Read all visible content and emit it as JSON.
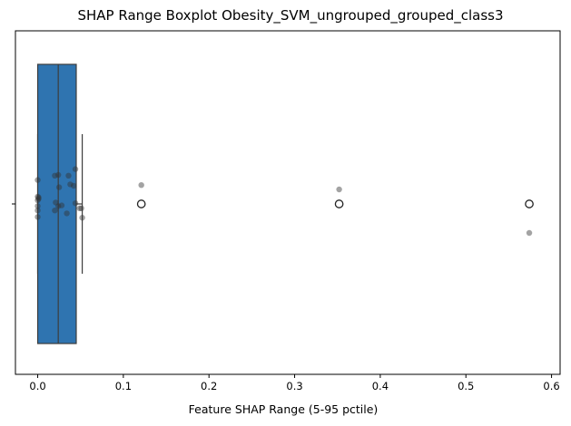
{
  "chart_data": {
    "type": "boxplot",
    "title": "SHAP Range Boxplot Obesity_SVM_ungrouped_grouped_class3",
    "xlabel": "Feature SHAP Range (5-95 pctile)",
    "ylabel": "",
    "xlim": [
      -0.026,
      0.61
    ],
    "xticks": [
      0.0,
      0.1,
      0.2,
      0.3,
      0.4,
      0.5,
      0.6
    ],
    "xtick_labels": [
      "0.0",
      "0.1",
      "0.2",
      "0.3",
      "0.4",
      "0.5",
      "0.6"
    ],
    "grid": false,
    "box": {
      "q1": 0.0,
      "median": 0.024,
      "q3": 0.045,
      "whisker_low": 0.0,
      "whisker_high": 0.052,
      "color": "#2f74b0"
    },
    "outliers": [
      0.121,
      0.352,
      0.574
    ],
    "points": [
      {
        "x": 0.0,
        "j": -0.33
      },
      {
        "x": 0.0,
        "j": -0.1
      },
      {
        "x": 0.0,
        "j": -0.05
      },
      {
        "x": 0.0,
        "j": 0.03
      },
      {
        "x": 0.001,
        "j": -0.09
      },
      {
        "x": 0.001,
        "j": -0.07
      },
      {
        "x": 0.0,
        "j": 0.09
      },
      {
        "x": 0.0,
        "j": 0.18
      },
      {
        "x": 0.02,
        "j": -0.39
      },
      {
        "x": 0.024,
        "j": -0.4
      },
      {
        "x": 0.025,
        "j": -0.23
      },
      {
        "x": 0.036,
        "j": -0.39
      },
      {
        "x": 0.038,
        "j": -0.27
      },
      {
        "x": 0.042,
        "j": -0.25
      },
      {
        "x": 0.044,
        "j": -0.48
      },
      {
        "x": 0.021,
        "j": -0.02
      },
      {
        "x": 0.024,
        "j": 0.03
      },
      {
        "x": 0.028,
        "j": 0.02
      },
      {
        "x": 0.044,
        "j": -0.01
      },
      {
        "x": 0.049,
        "j": 0.06
      },
      {
        "x": 0.051,
        "j": 0.06
      },
      {
        "x": 0.02,
        "j": 0.09
      },
      {
        "x": 0.034,
        "j": 0.13
      },
      {
        "x": 0.052,
        "j": 0.19
      },
      {
        "x": 0.121,
        "j": -0.26
      },
      {
        "x": 0.352,
        "j": -0.2
      },
      {
        "x": 0.574,
        "j": 0.4
      }
    ],
    "point_color": "#333333"
  }
}
